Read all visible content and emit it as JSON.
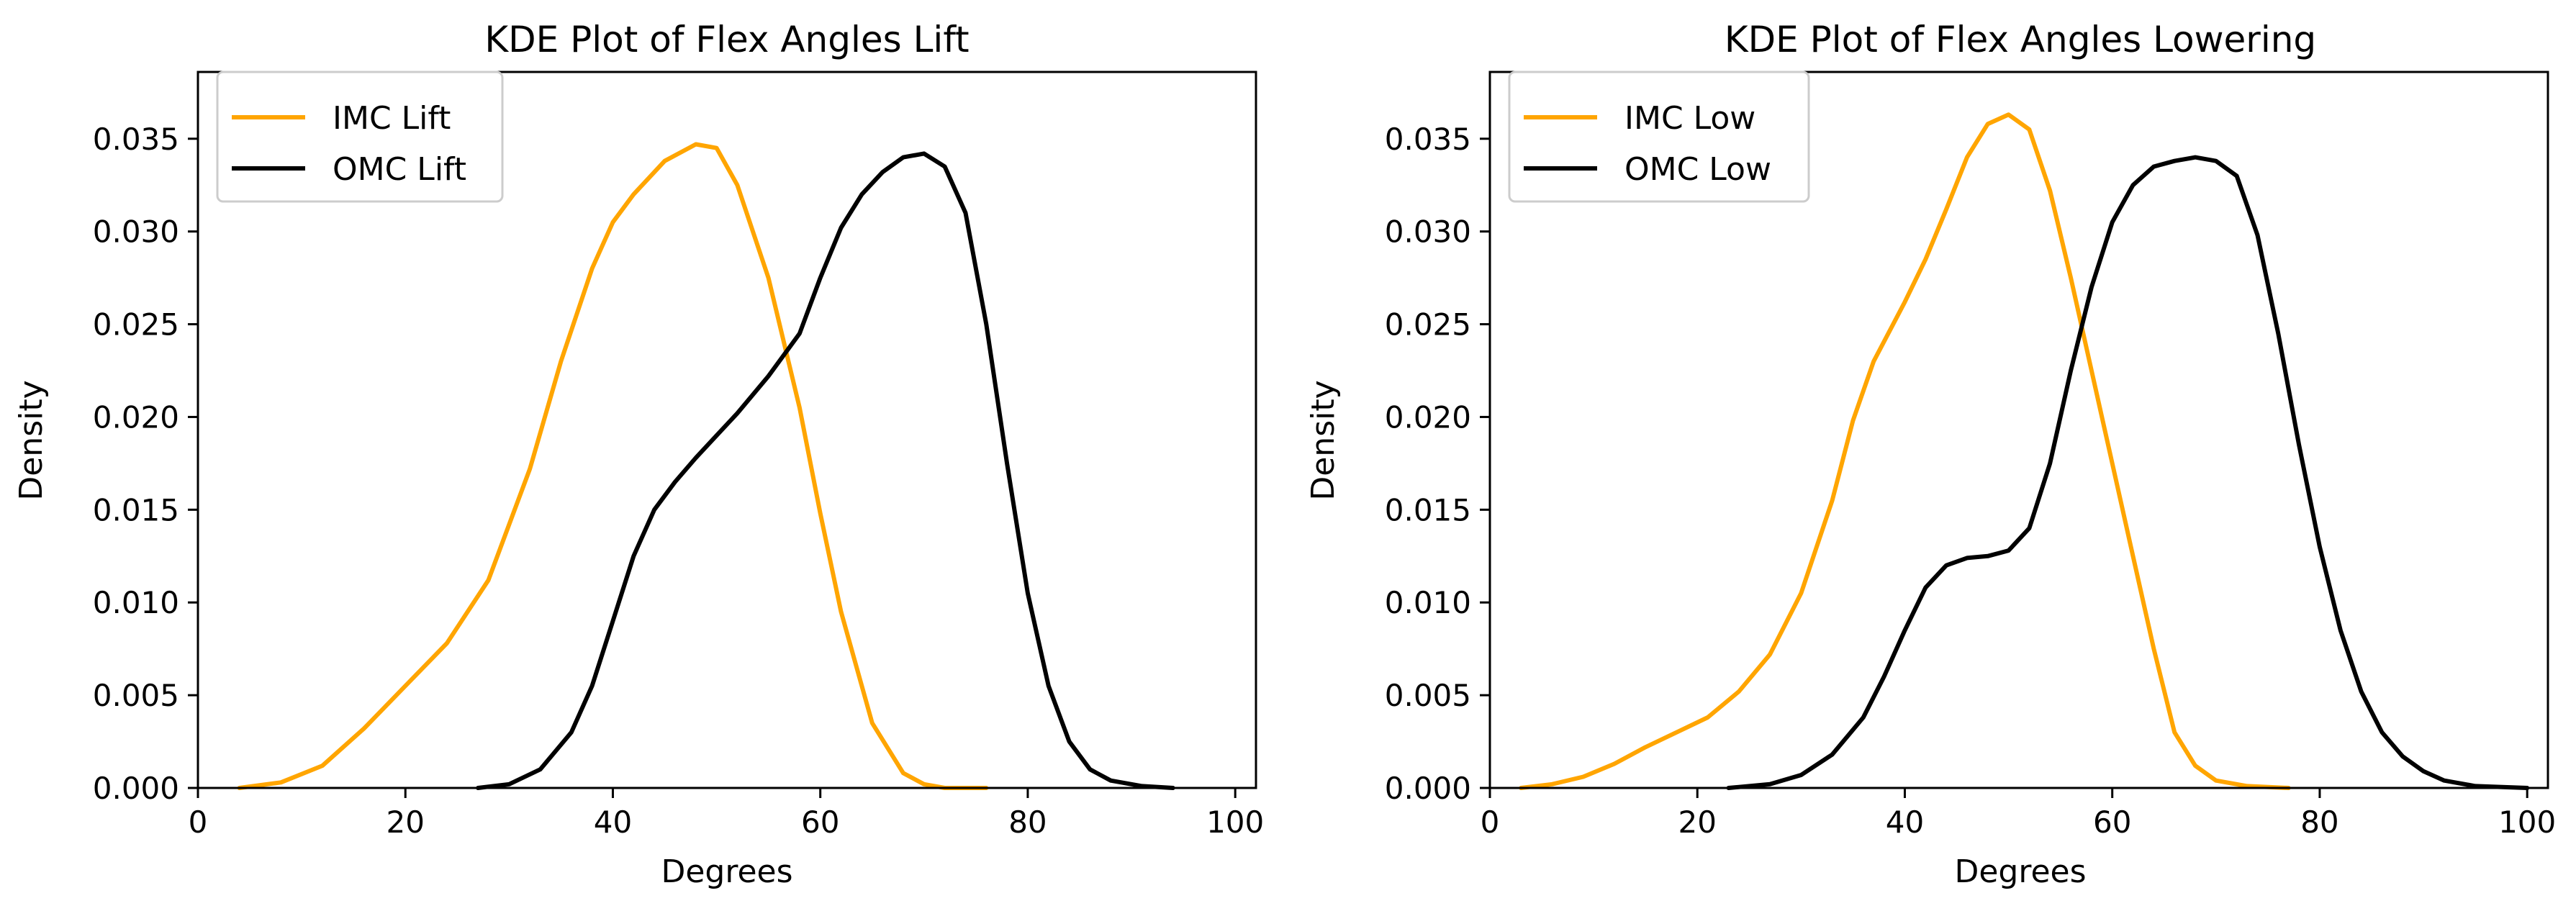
{
  "colors": {
    "imc": "#ffa500",
    "omc": "#000000",
    "axis": "#000000",
    "background": "#ffffff"
  },
  "chart_data": [
    {
      "type": "line",
      "title": "KDE Plot of Flex Angles Lift",
      "xlabel": "Degrees",
      "ylabel": "Density",
      "xlim": [
        0,
        102
      ],
      "ylim": [
        0,
        0.0386
      ],
      "xticks": [
        0,
        20,
        40,
        60,
        80,
        100
      ],
      "xtick_labels": [
        "0",
        "20",
        "40",
        "60",
        "80",
        "100"
      ],
      "yticks": [
        0,
        0.005,
        0.01,
        0.015,
        0.02,
        0.025,
        0.03,
        0.035
      ],
      "ytick_labels": [
        "0.000",
        "0.005",
        "0.010",
        "0.015",
        "0.020",
        "0.025",
        "0.030",
        "0.035"
      ],
      "grid": false,
      "legend": "top-left",
      "series": [
        {
          "name": "IMC Lift",
          "color": "#ffa500",
          "x": [
            4,
            8,
            12,
            16,
            20,
            24,
            28,
            32,
            35,
            38,
            40,
            42,
            45,
            48,
            50,
            52,
            55,
            58,
            60,
            62,
            65,
            68,
            70,
            72,
            76
          ],
          "y": [
            0.0,
            0.0003,
            0.0012,
            0.0032,
            0.0055,
            0.0078,
            0.0112,
            0.0172,
            0.023,
            0.028,
            0.0305,
            0.032,
            0.0338,
            0.0347,
            0.0345,
            0.0325,
            0.0275,
            0.0205,
            0.0148,
            0.0095,
            0.0035,
            0.0008,
            0.0002,
            0.0,
            0.0
          ]
        },
        {
          "name": "OMC Lift",
          "color": "#000000",
          "x": [
            27,
            30,
            33,
            36,
            38,
            40,
            42,
            44,
            46,
            48,
            50,
            52,
            55,
            58,
            60,
            62,
            64,
            66,
            68,
            70,
            72,
            74,
            76,
            78,
            80,
            82,
            84,
            86,
            88,
            91,
            94
          ],
          "y": [
            0.0,
            0.0002,
            0.001,
            0.003,
            0.0055,
            0.009,
            0.0125,
            0.015,
            0.0165,
            0.0178,
            0.019,
            0.0202,
            0.0222,
            0.0245,
            0.0275,
            0.0302,
            0.032,
            0.0332,
            0.034,
            0.0342,
            0.0335,
            0.031,
            0.025,
            0.0175,
            0.0105,
            0.0055,
            0.0025,
            0.001,
            0.0004,
            0.0001,
            0.0
          ]
        }
      ]
    },
    {
      "type": "line",
      "title": "KDE Plot of Flex Angles Lowering",
      "xlabel": "Degrees",
      "ylabel": "Density",
      "xlim": [
        0,
        102
      ],
      "ylim": [
        0,
        0.0386
      ],
      "xticks": [
        0,
        20,
        40,
        60,
        80,
        100
      ],
      "xtick_labels": [
        "0",
        "20",
        "40",
        "60",
        "80",
        "100"
      ],
      "yticks": [
        0,
        0.005,
        0.01,
        0.015,
        0.02,
        0.025,
        0.03,
        0.035
      ],
      "ytick_labels": [
        "0.000",
        "0.005",
        "0.010",
        "0.015",
        "0.020",
        "0.025",
        "0.030",
        "0.035"
      ],
      "grid": false,
      "legend": "top-left",
      "series": [
        {
          "name": "IMC Low",
          "color": "#ffa500",
          "x": [
            3,
            6,
            9,
            12,
            15,
            18,
            21,
            24,
            27,
            30,
            33,
            35,
            37,
            40,
            42,
            44,
            46,
            48,
            50,
            52,
            54,
            56,
            58,
            60,
            62,
            64,
            66,
            68,
            70,
            73,
            77
          ],
          "y": [
            0.0,
            0.0002,
            0.0006,
            0.0013,
            0.0022,
            0.003,
            0.0038,
            0.0052,
            0.0072,
            0.0105,
            0.0155,
            0.0198,
            0.023,
            0.0262,
            0.0285,
            0.0312,
            0.034,
            0.0358,
            0.0363,
            0.0355,
            0.0322,
            0.0275,
            0.0225,
            0.0175,
            0.0125,
            0.0075,
            0.003,
            0.0012,
            0.0004,
            0.0001,
            0.0
          ]
        },
        {
          "name": "OMC Low",
          "color": "#000000",
          "x": [
            23,
            27,
            30,
            33,
            36,
            38,
            40,
            42,
            44,
            46,
            48,
            50,
            52,
            54,
            56,
            58,
            60,
            62,
            64,
            66,
            68,
            70,
            72,
            74,
            76,
            78,
            80,
            82,
            84,
            86,
            88,
            90,
            92,
            95,
            100
          ],
          "y": [
            0.0,
            0.0002,
            0.0007,
            0.0018,
            0.0038,
            0.006,
            0.0085,
            0.0108,
            0.012,
            0.0124,
            0.0125,
            0.0128,
            0.014,
            0.0175,
            0.0225,
            0.027,
            0.0305,
            0.0325,
            0.0335,
            0.0338,
            0.034,
            0.0338,
            0.033,
            0.0298,
            0.0245,
            0.0185,
            0.013,
            0.0085,
            0.0052,
            0.003,
            0.0017,
            0.0009,
            0.0004,
            0.0001,
            0.0
          ]
        }
      ]
    }
  ]
}
